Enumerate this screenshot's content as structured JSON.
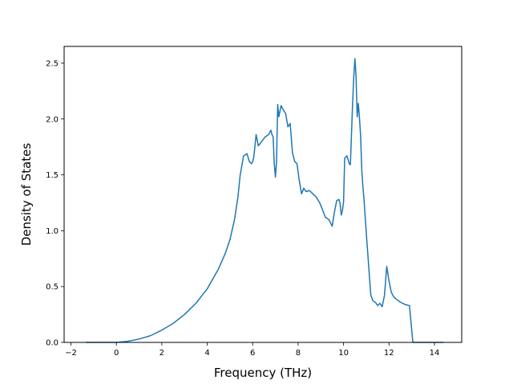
{
  "chart_data": {
    "type": "line",
    "title": "",
    "xlabel": "Frequency (THz)",
    "ylabel": "Density of States",
    "xlim": [
      -2.3,
      15.2
    ],
    "ylim": [
      0.0,
      2.65
    ],
    "xticks": [
      -2,
      0,
      2,
      4,
      6,
      8,
      10,
      12,
      14
    ],
    "xtick_labels": [
      "−2",
      "0",
      "2",
      "4",
      "6",
      "8",
      "10",
      "12",
      "14"
    ],
    "yticks": [
      0.0,
      0.5,
      1.0,
      1.5,
      2.0,
      2.5
    ],
    "ytick_labels": [
      "0.0",
      "0.5",
      "1.0",
      "1.5",
      "2.0",
      "2.5"
    ],
    "grid": false,
    "line_color": "#1f77b4",
    "series": [
      {
        "x": [
          -1.35,
          -0.5,
          0.0,
          0.5,
          1.0,
          1.5,
          2.0,
          2.5,
          3.0,
          3.5,
          4.0,
          4.5,
          4.8,
          5.0,
          5.2,
          5.35,
          5.45,
          5.6,
          5.75,
          5.85,
          5.95,
          6.0,
          6.05,
          6.15,
          6.25,
          6.4,
          6.55,
          6.7,
          6.8,
          6.85,
          6.9,
          6.95,
          7.0,
          7.05,
          7.1,
          7.15,
          7.25,
          7.35,
          7.45,
          7.55,
          7.65,
          7.75,
          7.85,
          7.95,
          8.05,
          8.15,
          8.25,
          8.35,
          8.5,
          8.6,
          8.7,
          8.8,
          8.95,
          9.05,
          9.2,
          9.35,
          9.5,
          9.6,
          9.7,
          9.8,
          9.85,
          9.9,
          9.95,
          10.0,
          10.05,
          10.15,
          10.25,
          10.3,
          10.4,
          10.45,
          10.5,
          10.55,
          10.6,
          10.65,
          10.7,
          10.75,
          10.8,
          10.85,
          10.9,
          11.0,
          11.1,
          11.2,
          11.3,
          11.4,
          11.5,
          11.6,
          11.7,
          11.8,
          11.9,
          12.0,
          12.05,
          12.1,
          12.2,
          12.3,
          12.5,
          12.7,
          12.9,
          13.05,
          13.1,
          13.3,
          14.4
        ],
        "y": [
          0.0,
          0.0,
          0.0,
          0.01,
          0.03,
          0.06,
          0.11,
          0.17,
          0.25,
          0.35,
          0.48,
          0.66,
          0.8,
          0.92,
          1.1,
          1.3,
          1.5,
          1.67,
          1.69,
          1.62,
          1.6,
          1.62,
          1.66,
          1.86,
          1.76,
          1.8,
          1.84,
          1.86,
          1.9,
          1.86,
          1.84,
          1.6,
          1.48,
          1.62,
          2.13,
          2.02,
          2.12,
          2.08,
          2.05,
          1.93,
          1.96,
          1.7,
          1.62,
          1.6,
          1.45,
          1.33,
          1.38,
          1.35,
          1.36,
          1.34,
          1.32,
          1.3,
          1.25,
          1.2,
          1.12,
          1.1,
          1.04,
          1.17,
          1.27,
          1.28,
          1.24,
          1.14,
          1.18,
          1.26,
          1.65,
          1.67,
          1.6,
          1.59,
          2.15,
          2.38,
          2.54,
          2.38,
          2.02,
          2.14,
          2.01,
          1.85,
          1.55,
          1.4,
          1.28,
          0.98,
          0.7,
          0.42,
          0.37,
          0.36,
          0.33,
          0.35,
          0.32,
          0.42,
          0.68,
          0.55,
          0.5,
          0.45,
          0.41,
          0.39,
          0.36,
          0.34,
          0.33,
          0.0,
          0.0,
          0.0,
          0.0
        ]
      }
    ]
  }
}
